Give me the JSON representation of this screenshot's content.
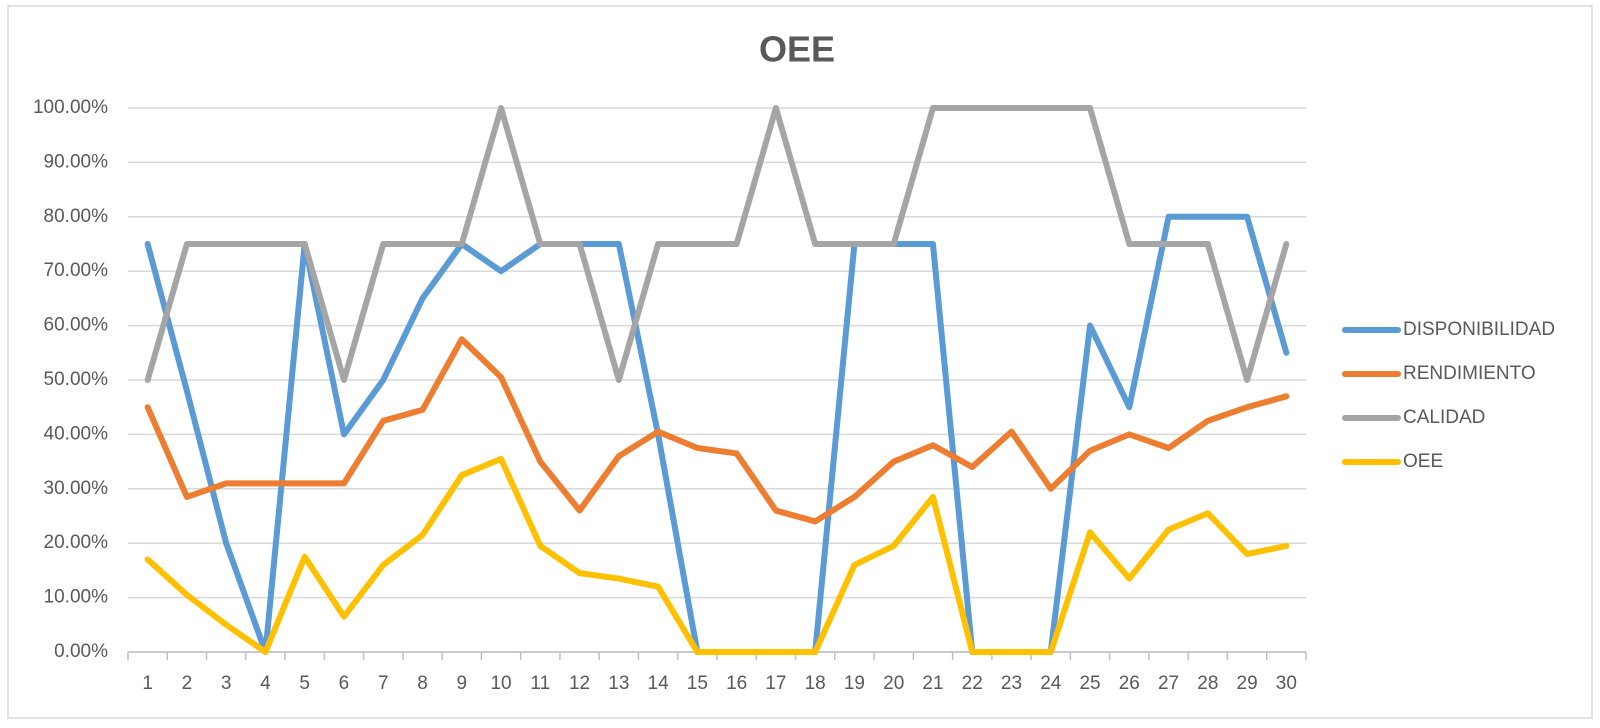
{
  "chart_data": {
    "type": "line",
    "title": "OEE",
    "categories": [
      "1",
      "2",
      "3",
      "4",
      "5",
      "6",
      "7",
      "8",
      "9",
      "10",
      "11",
      "12",
      "13",
      "14",
      "15",
      "16",
      "17",
      "18",
      "19",
      "20",
      "21",
      "22",
      "23",
      "24",
      "25",
      "26",
      "27",
      "28",
      "29",
      "30"
    ],
    "series": [
      {
        "name": "DISPONIBILIDAD",
        "color": "#5b9bd5",
        "values": [
          75,
          48,
          20,
          0,
          75,
          40,
          50,
          65,
          75,
          70,
          75,
          75,
          75,
          40,
          0,
          0,
          0,
          0,
          75,
          75,
          75,
          0,
          0,
          0,
          60,
          45,
          80,
          80,
          80,
          55
        ]
      },
      {
        "name": "RENDIMIENTO",
        "color": "#ed7d31",
        "values": [
          45,
          28.5,
          31,
          31,
          31,
          31,
          42.5,
          44.5,
          57.5,
          50.5,
          35,
          26,
          36,
          40.5,
          37.5,
          36.5,
          26,
          24,
          28.5,
          35,
          38,
          34,
          40.5,
          30,
          37,
          40,
          37.5,
          42.5,
          45,
          47
        ]
      },
      {
        "name": "CALIDAD",
        "color": "#a5a5a5",
        "values": [
          50,
          75,
          75,
          75,
          75,
          50,
          75,
          75,
          75,
          100,
          75,
          75,
          50,
          75,
          75,
          75,
          100,
          75,
          75,
          75,
          100,
          100,
          100,
          100,
          100,
          75,
          75,
          75,
          50,
          75
        ]
      },
      {
        "name": "OEE",
        "color": "#ffc000",
        "values": [
          17,
          10.5,
          5,
          0,
          17.5,
          6.5,
          16,
          21.5,
          32.5,
          35.5,
          19.5,
          14.5,
          13.5,
          12,
          0,
          0,
          0,
          0,
          16,
          19.5,
          28.5,
          0,
          0,
          0,
          22,
          13.5,
          22.5,
          25.5,
          18,
          19.5
        ]
      }
    ],
    "ylim": [
      0,
      100
    ],
    "yticks": [
      {
        "value": 0,
        "label": "0.00%"
      },
      {
        "value": 10,
        "label": "10.00%"
      },
      {
        "value": 20,
        "label": "20.00%"
      },
      {
        "value": 30,
        "label": "30.00%"
      },
      {
        "value": 40,
        "label": "40.00%"
      },
      {
        "value": 50,
        "label": "50.00%"
      },
      {
        "value": 60,
        "label": "60.00%"
      },
      {
        "value": 70,
        "label": "70.00%"
      },
      {
        "value": 80,
        "label": "80.00%"
      },
      {
        "value": 90,
        "label": "90.00%"
      },
      {
        "value": 100,
        "label": "100.00%"
      }
    ],
    "grid": true,
    "legend": "right"
  }
}
